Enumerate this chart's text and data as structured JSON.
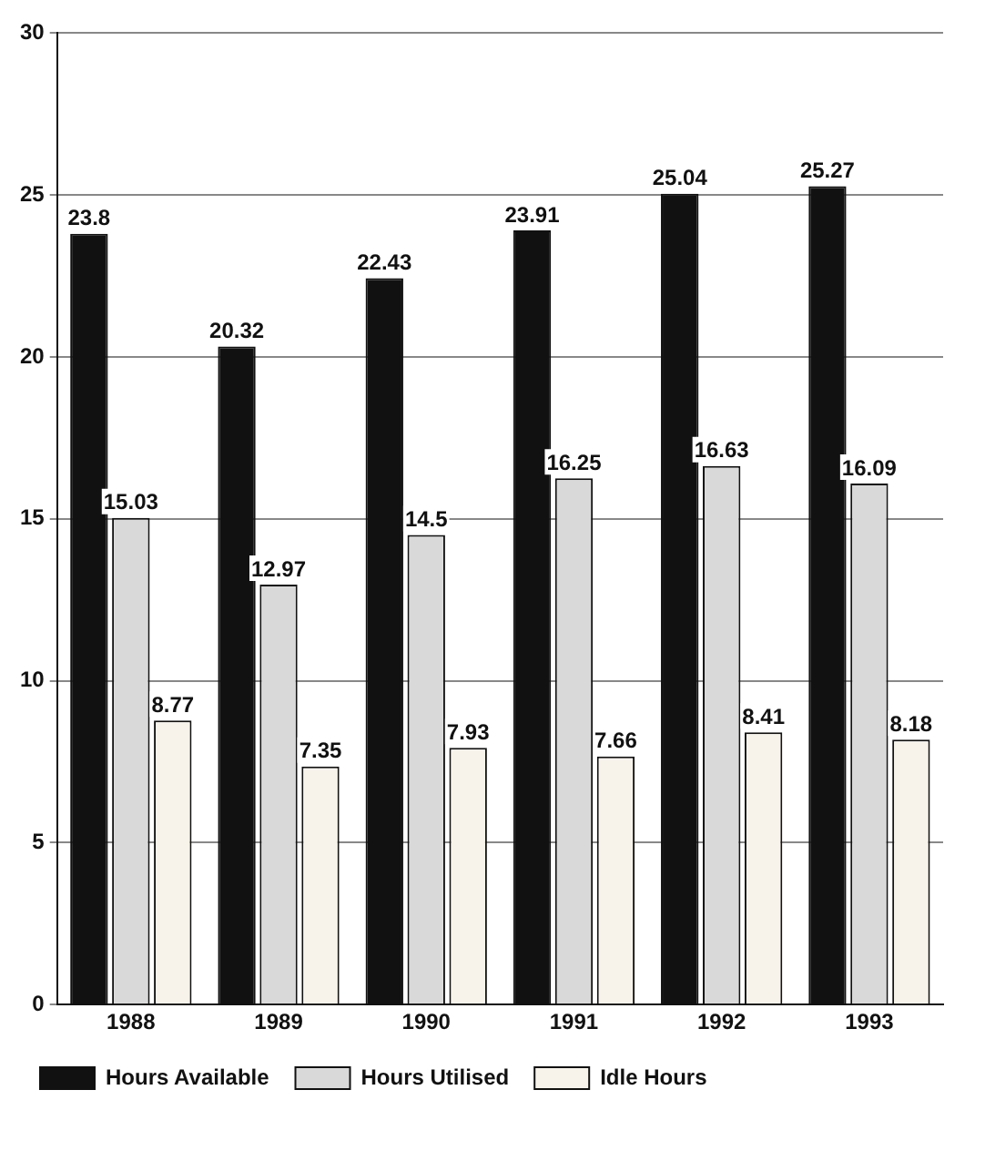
{
  "chart_data": {
    "type": "bar",
    "categories": [
      "1988",
      "1989",
      "1990",
      "1991",
      "1992",
      "1993"
    ],
    "series": [
      {
        "name": "Hours Available",
        "color": "#111111",
        "values": [
          23.8,
          20.32,
          22.43,
          23.91,
          25.04,
          25.27
        ]
      },
      {
        "name": "Hours Utilised",
        "color": "#d9d9d9",
        "values": [
          15.03,
          12.97,
          14.5,
          16.25,
          16.63,
          16.09
        ]
      },
      {
        "name": "Idle Hours",
        "color": "#f7f3ea",
        "values": [
          8.77,
          7.35,
          7.93,
          7.66,
          8.41,
          8.18
        ]
      }
    ],
    "ylim": [
      0,
      30
    ],
    "yticks": [
      0,
      5,
      10,
      15,
      20,
      25,
      30
    ],
    "grid": "y",
    "legend": "bottom",
    "data_labels": true
  }
}
